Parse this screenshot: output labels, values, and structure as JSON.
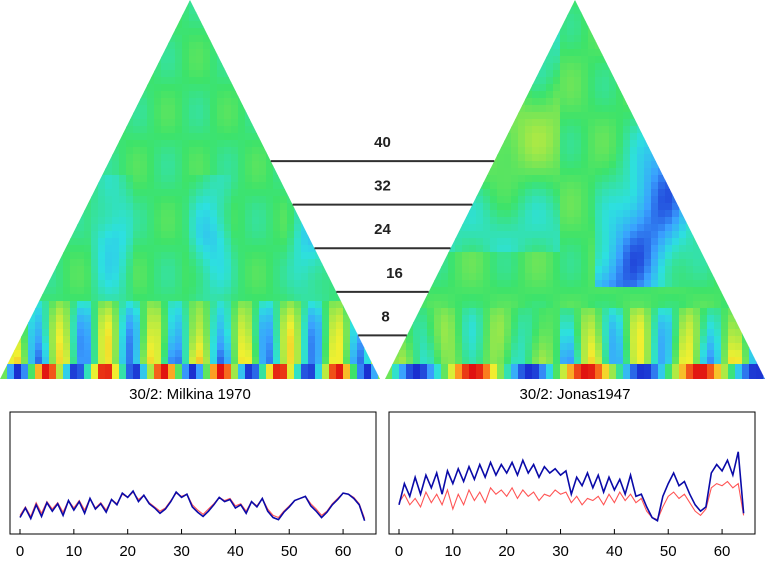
{
  "colors": {
    "background": "#ffffff",
    "scale_lines": "#303030",
    "series_blue": "#0a0aa8",
    "series_red": "#ff5555",
    "frame": "#000000",
    "colormap": [
      "#1a2fd0",
      "#3aa0ff",
      "#2de0e0",
      "#3de36a",
      "#9be84a",
      "#f0f030",
      "#ff8a20",
      "#e01010"
    ]
  },
  "scale_labels": [
    "40",
    "32",
    "24",
    "16",
    "8"
  ],
  "chart_data": [
    {
      "type": "heatmap",
      "shape": "triangle",
      "title": "30/2: Milkina 1970",
      "scales": [
        8,
        16,
        24,
        32,
        40
      ],
      "colormap": "blue-green-yellow-red",
      "dominant": "green",
      "blue_red_cells_near_scale": 8
    },
    {
      "type": "heatmap",
      "shape": "triangle",
      "title": "30/2: Jonas1947",
      "scales": [
        8,
        16,
        24,
        32,
        40
      ],
      "colormap": "blue-green-yellow-red",
      "dominant": "green",
      "blue_region": "upper right diagonal"
    },
    {
      "type": "line",
      "title": "",
      "xlim": [
        0,
        65
      ],
      "x_ticks": [
        "0",
        "10",
        "20",
        "30",
        "40",
        "50",
        "60"
      ],
      "y_ticks_shown": false,
      "series": [
        {
          "color": "#0a0aa8",
          "values": [
            0.08,
            0.17,
            0.07,
            0.2,
            0.09,
            0.22,
            0.14,
            0.21,
            0.1,
            0.24,
            0.15,
            0.23,
            0.12,
            0.26,
            0.16,
            0.21,
            0.13,
            0.25,
            0.2,
            0.31,
            0.27,
            0.33,
            0.23,
            0.29,
            0.21,
            0.17,
            0.12,
            0.16,
            0.23,
            0.32,
            0.27,
            0.3,
            0.18,
            0.13,
            0.09,
            0.14,
            0.2,
            0.27,
            0.23,
            0.25,
            0.17,
            0.2,
            0.12,
            0.23,
            0.18,
            0.26,
            0.14,
            0.08,
            0.06,
            0.13,
            0.18,
            0.24,
            0.26,
            0.28,
            0.19,
            0.14,
            0.08,
            0.13,
            0.2,
            0.25,
            0.31,
            0.3,
            0.26,
            0.2,
            0.05
          ]
        },
        {
          "color": "#ff5555",
          "values": [
            0.1,
            0.18,
            0.09,
            0.22,
            0.12,
            0.23,
            0.16,
            0.22,
            0.13,
            0.24,
            0.17,
            0.24,
            0.15,
            0.26,
            0.17,
            0.22,
            0.15,
            0.25,
            0.21,
            0.3,
            0.27,
            0.32,
            0.25,
            0.29,
            0.22,
            0.18,
            0.14,
            0.17,
            0.24,
            0.31,
            0.28,
            0.3,
            0.2,
            0.15,
            0.11,
            0.16,
            0.21,
            0.27,
            0.24,
            0.26,
            0.19,
            0.21,
            0.14,
            0.23,
            0.19,
            0.26,
            0.16,
            0.1,
            0.08,
            0.14,
            0.19,
            0.24,
            0.26,
            0.28,
            0.21,
            0.16,
            0.1,
            0.14,
            0.21,
            0.26,
            0.31,
            0.3,
            0.27,
            0.21,
            0.07
          ]
        }
      ]
    },
    {
      "type": "line",
      "title": "",
      "xlim": [
        0,
        65
      ],
      "x_ticks": [
        "0",
        "10",
        "20",
        "30",
        "40",
        "50",
        "60"
      ],
      "y_ticks_shown": false,
      "series": [
        {
          "color": "#0a0aa8",
          "values": [
            0.2,
            0.4,
            0.28,
            0.46,
            0.3,
            0.48,
            0.36,
            0.5,
            0.3,
            0.52,
            0.4,
            0.54,
            0.42,
            0.56,
            0.44,
            0.58,
            0.46,
            0.6,
            0.48,
            0.58,
            0.5,
            0.6,
            0.48,
            0.62,
            0.5,
            0.58,
            0.46,
            0.56,
            0.5,
            0.54,
            0.48,
            0.52,
            0.3,
            0.46,
            0.38,
            0.5,
            0.36,
            0.48,
            0.32,
            0.46,
            0.34,
            0.44,
            0.3,
            0.48,
            0.28,
            0.3,
            0.18,
            0.08,
            0.05,
            0.28,
            0.4,
            0.5,
            0.38,
            0.42,
            0.3,
            0.2,
            0.14,
            0.18,
            0.5,
            0.58,
            0.52,
            0.62,
            0.48,
            0.7,
            0.12
          ]
        },
        {
          "color": "#ff5555",
          "values": [
            0.22,
            0.3,
            0.2,
            0.26,
            0.18,
            0.32,
            0.22,
            0.3,
            0.2,
            0.34,
            0.16,
            0.3,
            0.2,
            0.34,
            0.24,
            0.32,
            0.22,
            0.36,
            0.3,
            0.34,
            0.28,
            0.36,
            0.26,
            0.34,
            0.28,
            0.32,
            0.24,
            0.3,
            0.28,
            0.34,
            0.3,
            0.32,
            0.22,
            0.28,
            0.2,
            0.26,
            0.24,
            0.28,
            0.2,
            0.3,
            0.22,
            0.32,
            0.24,
            0.3,
            0.22,
            0.26,
            0.14,
            0.08,
            0.06,
            0.18,
            0.28,
            0.32,
            0.26,
            0.3,
            0.22,
            0.14,
            0.1,
            0.16,
            0.36,
            0.4,
            0.38,
            0.42,
            0.36,
            0.4,
            0.1
          ]
        }
      ]
    }
  ]
}
